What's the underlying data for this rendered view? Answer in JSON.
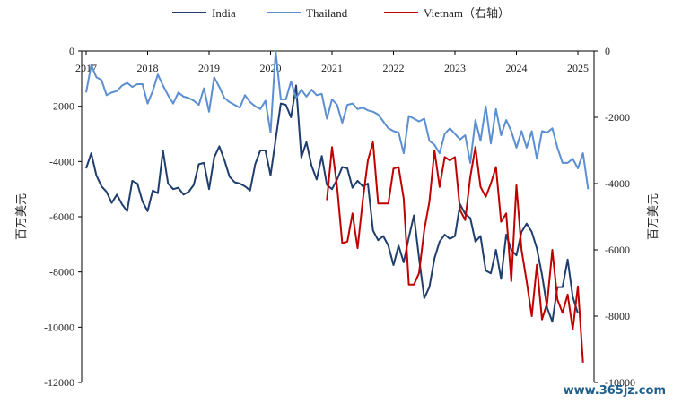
{
  "chart_data": {
    "type": "line",
    "xlabel": "",
    "x_tick_labels": [
      "2017",
      "2018",
      "2019",
      "2020",
      "2021",
      "2022",
      "2023",
      "2024",
      "2025"
    ],
    "y_left": {
      "label": "百万美元",
      "ylim": [
        -12000,
        0
      ],
      "ticks": [
        0,
        -2000,
        -4000,
        -6000,
        -8000,
        -10000,
        -12000
      ]
    },
    "y_right": {
      "label": "百万美元",
      "ylim": [
        -10000,
        0
      ],
      "ticks": [
        0,
        -2000,
        -4000,
        -6000,
        -8000,
        -10000
      ]
    },
    "legend_position": "top-center",
    "grid": false,
    "series": [
      {
        "name": "India",
        "axis": "left",
        "color": "#1f3e6e",
        "start": "2017-01",
        "values": [
          -4250,
          -3700,
          -4500,
          -4900,
          -5100,
          -5500,
          -5200,
          -5550,
          -5800,
          -4700,
          -4800,
          -5450,
          -5800,
          -5050,
          -5150,
          -3600,
          -4800,
          -5000,
          -4950,
          -5200,
          -5100,
          -4850,
          -4100,
          -4050,
          -5000,
          -3850,
          -3450,
          -3950,
          -4550,
          -4750,
          -4800,
          -4900,
          -5050,
          -4100,
          -3600,
          -3600,
          -4500,
          -3200,
          -1900,
          -1950,
          -2400,
          -1250,
          -3850,
          -3300,
          -4150,
          -4650,
          -3800,
          -4850,
          -5000,
          -4650,
          -4200,
          -4250,
          -4950,
          -4700,
          -4900,
          -4800,
          -6500,
          -6850,
          -6700,
          -7050,
          -7750,
          -7050,
          -7650,
          -6750,
          -5950,
          -7500,
          -8950,
          -8550,
          -7500,
          -6900,
          -6650,
          -6800,
          -6700,
          -5550,
          -5900,
          -6050,
          -6900,
          -6700,
          -7950,
          -8050,
          -7200,
          -8250,
          -6650,
          -7200,
          -7400,
          -6550,
          -6250,
          -6550,
          -7150,
          -8100,
          -9300,
          -9800,
          -8550,
          -8550,
          -7550,
          -8900,
          -9500
        ]
      },
      {
        "name": "Thailand",
        "axis": "left",
        "color": "#5b8fd1",
        "start": "2017-01",
        "values": [
          -1500,
          -500,
          -950,
          -1050,
          -1600,
          -1500,
          -1450,
          -1250,
          -1150,
          -1300,
          -1200,
          -1200,
          -1900,
          -1450,
          -850,
          -1250,
          -1600,
          -1900,
          -1500,
          -1650,
          -1700,
          -1800,
          -1950,
          -1350,
          -2200,
          -950,
          -1300,
          -1700,
          -1850,
          -1950,
          -2050,
          -1600,
          -1850,
          -2000,
          -2100,
          -1800,
          -2950,
          0,
          -1750,
          -1750,
          -1100,
          -1700,
          -1400,
          -1650,
          -1400,
          -1600,
          -1550,
          -2450,
          -1750,
          -1950,
          -2600,
          -1950,
          -1900,
          -2100,
          -2050,
          -2150,
          -2200,
          -2300,
          -2550,
          -2800,
          -2900,
          -2950,
          -3700,
          -2350,
          -2450,
          -2550,
          -2450,
          -3250,
          -3400,
          -3700,
          -3000,
          -2800,
          -3000,
          -3200,
          -3050,
          -4050,
          -2500,
          -3250,
          -2000,
          -3350,
          -2100,
          -3050,
          -2500,
          -2900,
          -3500,
          -2900,
          -3500,
          -2900,
          -3900,
          -2900,
          -2950,
          -2800,
          -3500,
          -4050,
          -4050,
          -3900,
          -4250,
          -3700,
          -5000
        ]
      },
      {
        "name": "Vietnam（右轴）",
        "axis": "right",
        "color": "#c00000",
        "start": "2020-12",
        "values": [
          -4500,
          -2900,
          -4100,
          -5800,
          -5750,
          -4900,
          -5950,
          -4500,
          -3300,
          -2750,
          -4600,
          -4600,
          -4600,
          -3550,
          -3500,
          -4450,
          -7050,
          -7050,
          -6700,
          -5400,
          -4550,
          -3000,
          -4100,
          -3200,
          -3300,
          -3200,
          -4800,
          -5100,
          -3800,
          -2900,
          -4100,
          -4400,
          -4000,
          -3500,
          -5150,
          -4900,
          -6950,
          -4050,
          -6000,
          -6950,
          -8000,
          -6450,
          -8100,
          -7600,
          -6000,
          -7500,
          -7900,
          -7350,
          -8400,
          -7100,
          -9400
        ]
      }
    ]
  },
  "watermark": "www.365jz.com"
}
